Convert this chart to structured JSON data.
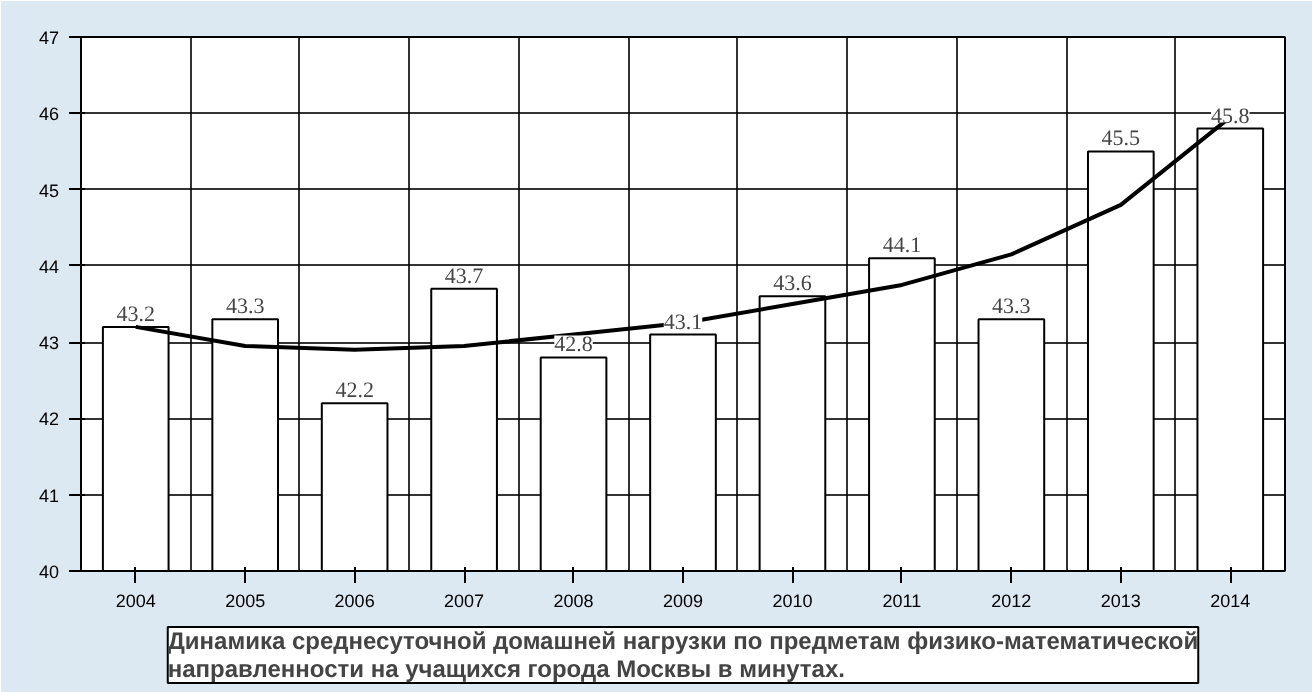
{
  "chart_data": {
    "type": "bar",
    "title": "Динамика среднесуточной домашней нагрузки по предметам физико-математической направленности на учащихся города Москвы в минутах.",
    "categories": [
      "2004",
      "2005",
      "2006",
      "2007",
      "2008",
      "2009",
      "2010",
      "2011",
      "2012",
      "2013",
      "2014"
    ],
    "series": [
      {
        "color": "#ffffff",
        "values": [
          43.2,
          43.3,
          42.2,
          43.7,
          42.8,
          43.1,
          43.6,
          44.1,
          43.3,
          45.5,
          45.8
        ],
        "value_labels": [
          "43.2",
          "43.3",
          "42.2",
          "43.7",
          "42.8",
          "43.1",
          "43.6",
          "44.1",
          "43.3",
          "45.5",
          "45.8"
        ]
      },
      {
        "type": "line",
        "color": "#000000",
        "values": [
          43.2,
          42.95,
          42.9,
          42.95,
          43.1,
          43.25,
          43.5,
          43.75,
          44.15,
          44.8,
          45.95
        ]
      }
    ],
    "ylim": [
      40,
      47
    ],
    "yticks": [
      40,
      41,
      42,
      43,
      44,
      45,
      46,
      47
    ],
    "grid": true
  }
}
